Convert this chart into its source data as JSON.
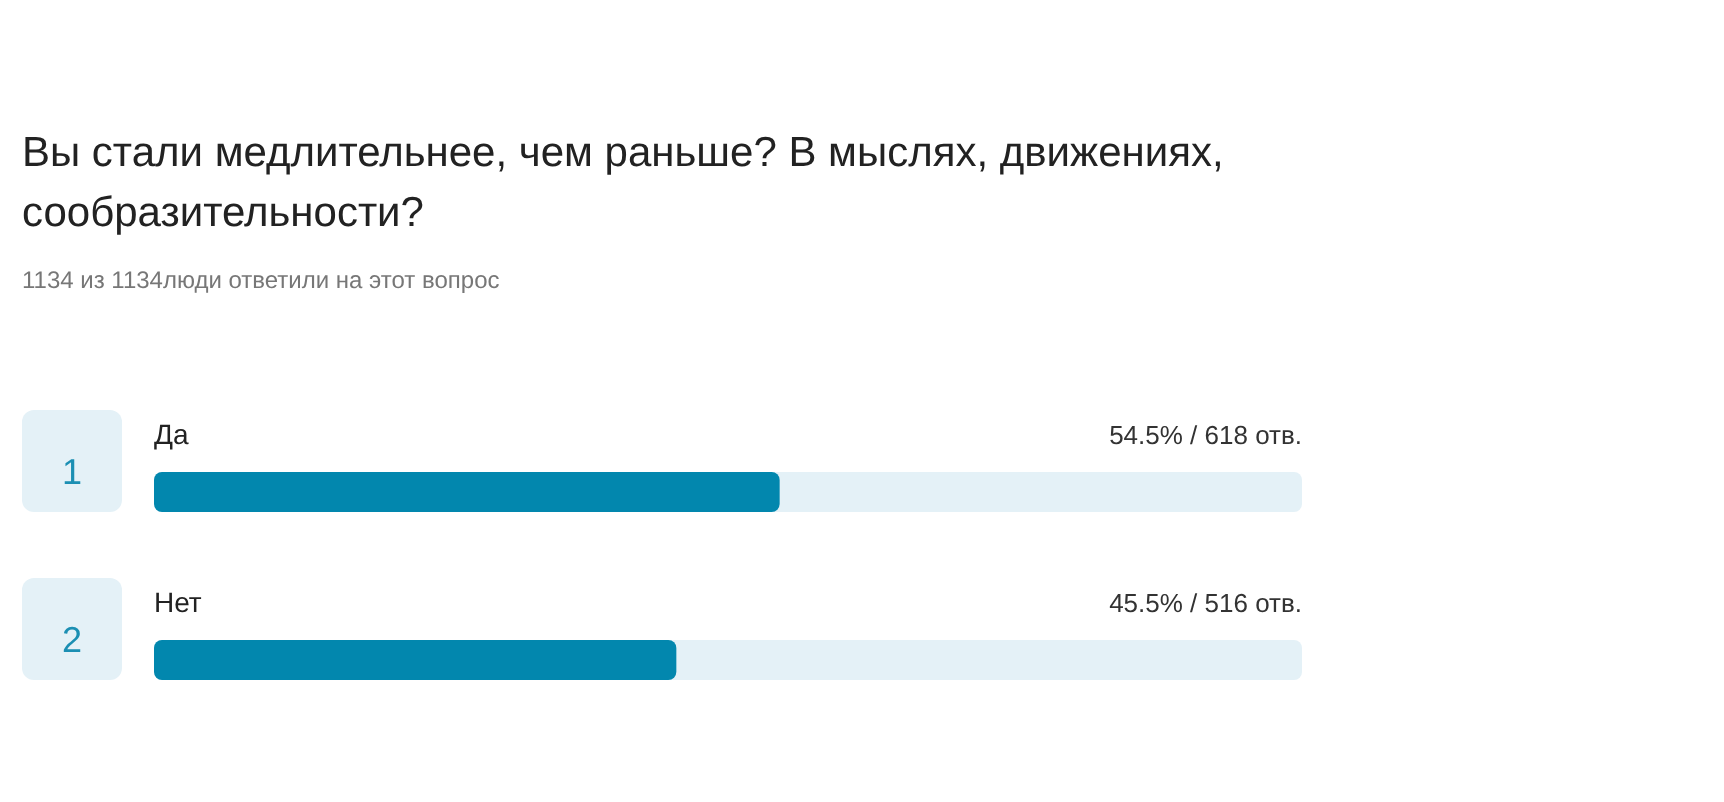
{
  "chart_data": {
    "type": "bar",
    "orientation": "horizontal",
    "title": "Вы стали медлительнее, чем раньше? В мыслях, движениях, сообразительности?",
    "subtitle": "1134 из 1134люди ответили на этот вопрос",
    "categories": [
      "Да",
      "Нет"
    ],
    "values": [
      54.5,
      45.5
    ],
    "value_labels": [
      "54.5% / 618 отв.",
      "45.5% / 516 отв."
    ],
    "color": "#0287ae",
    "xlim": [
      0,
      100
    ],
    "tick_labels": false,
    "grid": false,
    "legend": false,
    "annotations": [
      "1",
      "2"
    ]
  }
}
